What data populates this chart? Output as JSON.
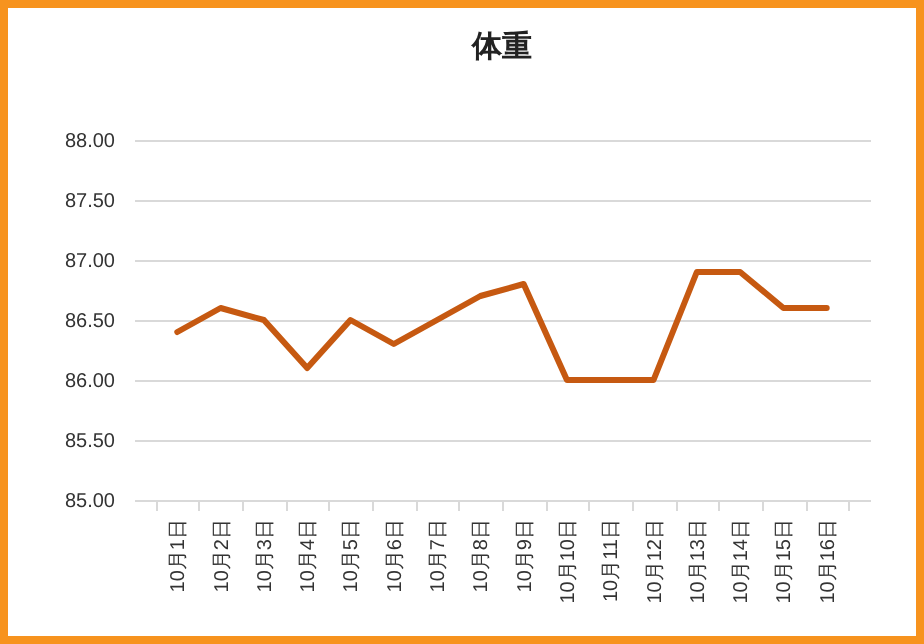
{
  "chart_data": {
    "type": "line",
    "title": "体重",
    "categories": [
      "10月1日",
      "10月2日",
      "10月3日",
      "10月4日",
      "10月5日",
      "10月6日",
      "10月7日",
      "10月8日",
      "10月9日",
      "10月10日",
      "10月11日",
      "10月12日",
      "10月13日",
      "10月14日",
      "10月15日",
      "10月16日"
    ],
    "series": [
      {
        "color": "#c65911",
        "values": [
          86.4,
          86.6,
          86.5,
          86.1,
          86.5,
          86.3,
          86.5,
          86.7,
          86.8,
          86.0,
          86.0,
          86.0,
          86.9,
          86.9,
          86.6,
          86.6
        ]
      }
    ],
    "ylim": [
      85,
      88
    ],
    "yticks": [
      {
        "value": 85,
        "label": "85.00"
      },
      {
        "value": 85.5,
        "label": "85.50"
      },
      {
        "value": 86,
        "label": "86.00"
      },
      {
        "value": 86.5,
        "label": "86.50"
      },
      {
        "value": 87,
        "label": "87.00"
      },
      {
        "value": 87.5,
        "label": "87.50"
      },
      {
        "value": 88,
        "label": "88.00"
      }
    ],
    "grid": "y",
    "legend": false,
    "marker": "none",
    "line_style": "solid"
  }
}
